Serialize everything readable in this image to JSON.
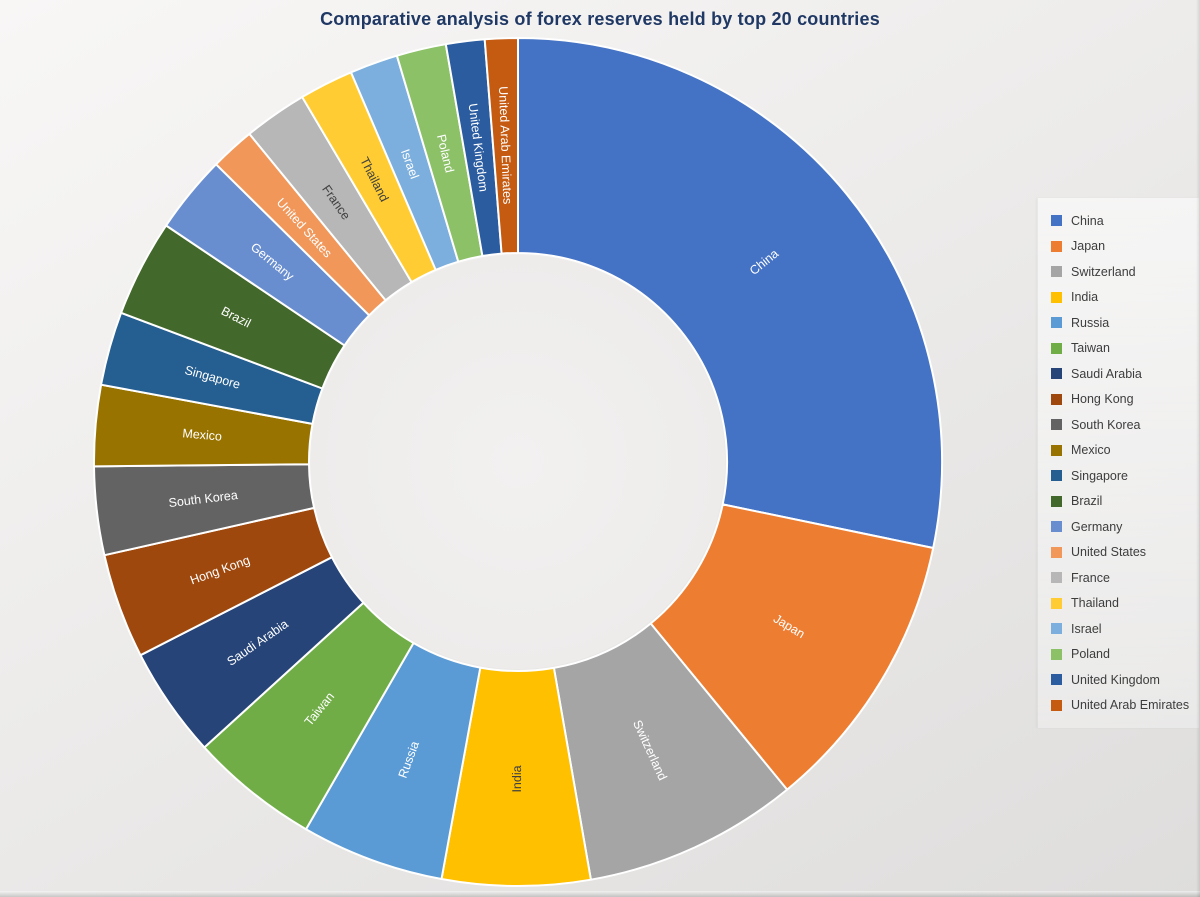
{
  "chart_data": {
    "type": "pie",
    "subtype": "donut",
    "title": "Comparative analysis of forex reserves held by top 20 countries",
    "title_color": "#1F3864",
    "legend_position": "right",
    "donut_hole_ratio": 0.49,
    "grid": false,
    "units": "percent share of total (estimated from slice angles)",
    "slices": [
      {
        "label": "China",
        "percent": 28.3,
        "angle_deg": 101.7,
        "color": "#4472C4",
        "label_color": "#FFFFFF"
      },
      {
        "label": "Japan",
        "percent": 10.8,
        "angle_deg": 38.9,
        "color": "#ED7D31",
        "label_color": "#FFFFFF"
      },
      {
        "label": "Switzerland",
        "percent": 8.2,
        "angle_deg": 29.5,
        "color": "#A5A5A5",
        "label_color": "#FFFFFF"
      },
      {
        "label": "India",
        "percent": 5.6,
        "angle_deg": 20.3,
        "color": "#FFC000",
        "label_color": "#404040"
      },
      {
        "label": "Russia",
        "percent": 5.4,
        "angle_deg": 19.6,
        "color": "#5B9BD5",
        "label_color": "#FFFFFF"
      },
      {
        "label": "Taiwan",
        "percent": 4.9,
        "angle_deg": 17.7,
        "color": "#70AD47",
        "label_color": "#FFFFFF"
      },
      {
        "label": "Saudi Arabia",
        "percent": 4.2,
        "angle_deg": 15.2,
        "color": "#264478",
        "label_color": "#FFFFFF"
      },
      {
        "label": "Hong Kong",
        "percent": 4.0,
        "angle_deg": 14.4,
        "color": "#9E480E",
        "label_color": "#FFFFFF"
      },
      {
        "label": "South Korea",
        "percent": 3.4,
        "angle_deg": 12.1,
        "color": "#636363",
        "label_color": "#FFFFFF"
      },
      {
        "label": "Mexico",
        "percent": 3.1,
        "angle_deg": 11.1,
        "color": "#997300",
        "label_color": "#FFFFFF"
      },
      {
        "label": "Singapore",
        "percent": 2.8,
        "angle_deg": 10.1,
        "color": "#255E91",
        "label_color": "#FFFFFF"
      },
      {
        "label": "Brazil",
        "percent": 3.7,
        "angle_deg": 13.3,
        "color": "#43682B",
        "label_color": "#FFFFFF"
      },
      {
        "label": "Germany",
        "percent": 3.0,
        "angle_deg": 10.7,
        "color": "#698ED0",
        "label_color": "#FFFFFF"
      },
      {
        "label": "United States",
        "percent": 1.7,
        "angle_deg": 6.1,
        "color": "#F1975A",
        "label_color": "#FFFFFF"
      },
      {
        "label": "France",
        "percent": 2.4,
        "angle_deg": 8.7,
        "color": "#B7B7B7",
        "label_color": "#404040"
      },
      {
        "label": "Thailand",
        "percent": 2.1,
        "angle_deg": 7.4,
        "color": "#FFCD33",
        "label_color": "#404040"
      },
      {
        "label": "Israel",
        "percent": 1.8,
        "angle_deg": 6.6,
        "color": "#7CAFDD",
        "label_color": "#FFFFFF"
      },
      {
        "label": "Poland",
        "percent": 1.9,
        "angle_deg": 6.8,
        "color": "#8CC168",
        "label_color": "#FFFFFF"
      },
      {
        "label": "United Kingdom",
        "percent": 1.5,
        "angle_deg": 5.3,
        "color": "#2B5CA0",
        "label_color": "#FFFFFF"
      },
      {
        "label": "United Arab Emirates",
        "percent": 1.3,
        "angle_deg": 4.5,
        "color": "#C55A11",
        "label_color": "#FFFFFF"
      }
    ]
  }
}
